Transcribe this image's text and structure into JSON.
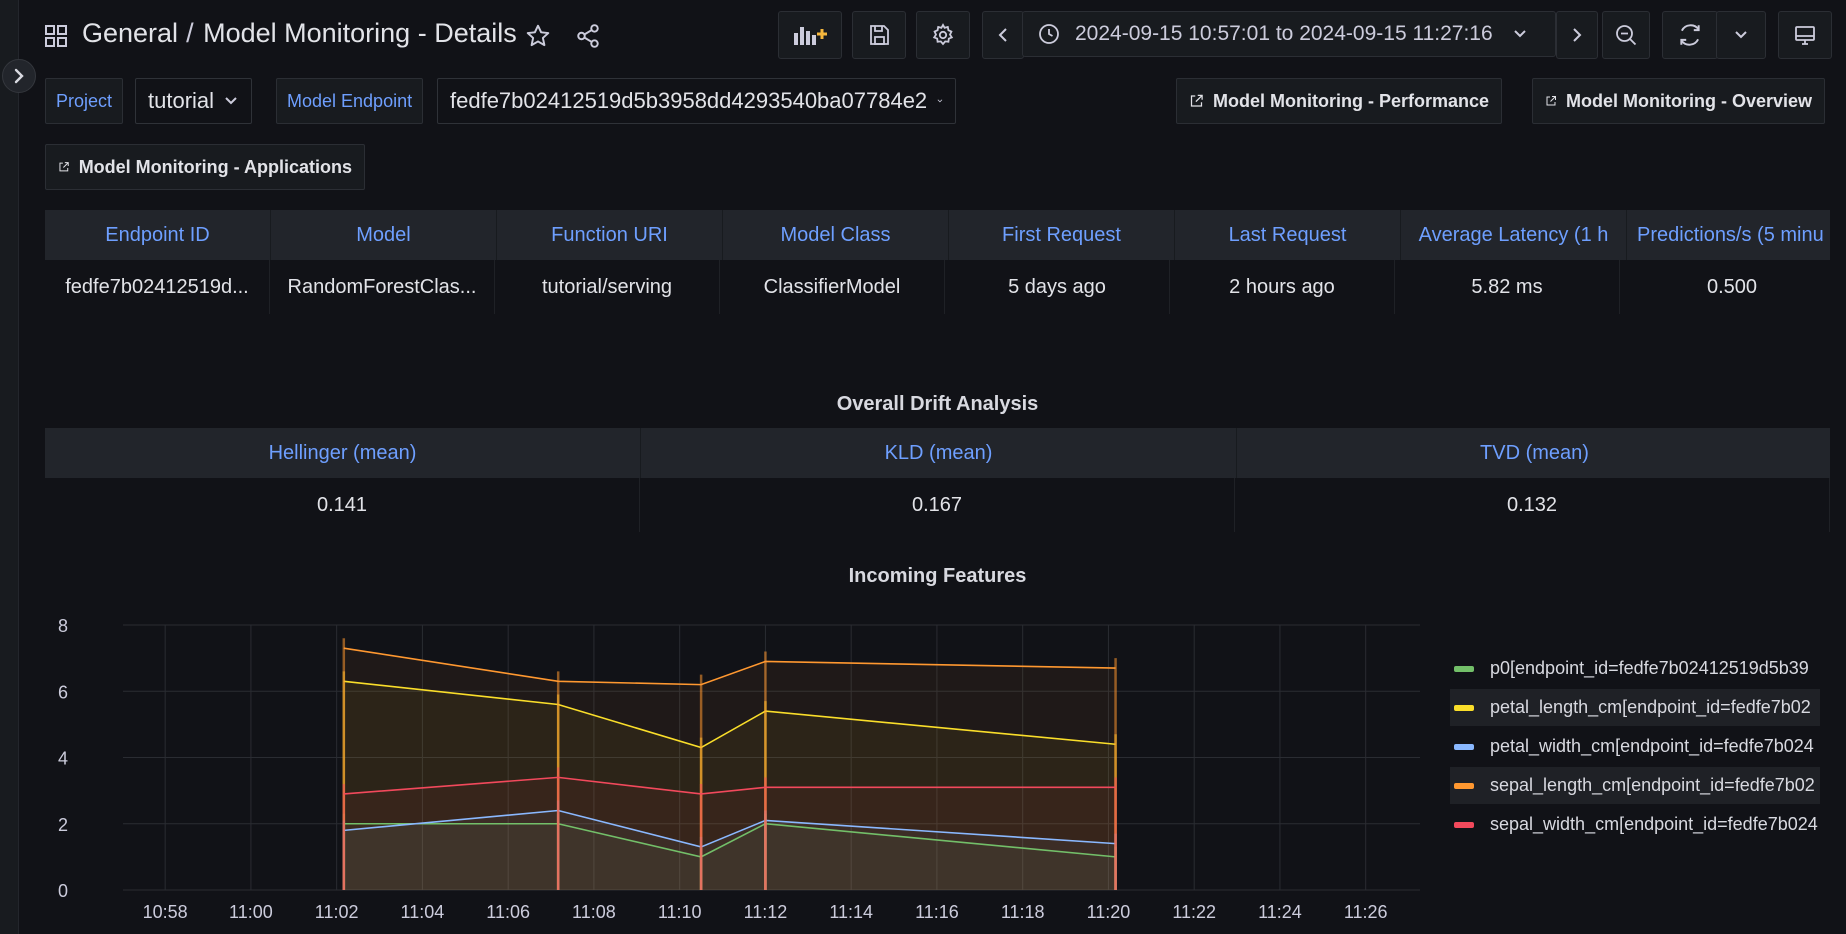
{
  "nav": {
    "folder": "General",
    "separator": "/",
    "dashboard": "Model Monitoring - Details",
    "time_range": {
      "from": "2024-09-15 10:57:01",
      "to_word": "to",
      "to": "2024-09-15 11:27:16"
    }
  },
  "variables": {
    "project": {
      "label": "Project",
      "value": "tutorial"
    },
    "endpoint": {
      "label": "Model Endpoint",
      "value": "fedfe7b02412519d5b3958dd4293540ba07784e2"
    }
  },
  "links": [
    {
      "label": "Model Monitoring - Performance"
    },
    {
      "label": "Model Monitoring - Overview"
    },
    {
      "label": "Model Monitoring - Applications"
    }
  ],
  "endpoint_table": {
    "headers": [
      "Endpoint ID",
      "Model",
      "Function URI",
      "Model Class",
      "First Request",
      "Last Request",
      "Average Latency (1 h",
      "Predictions/s (5 minu"
    ],
    "row": [
      "fedfe7b02412519d...",
      "RandomForestClas...",
      "tutorial/serving",
      "ClassifierModel",
      "5 days ago",
      "2 hours ago",
      "5.82 ms",
      "0.500"
    ]
  },
  "drift_panel": {
    "title": "Overall Drift Analysis",
    "headers": [
      "Hellinger (mean)",
      "KLD (mean)",
      "TVD (mean)"
    ],
    "row": [
      "0.141",
      "0.167",
      "0.132"
    ]
  },
  "chart_title": "Incoming Features",
  "chart_data": {
    "type": "line",
    "title": "Incoming Features",
    "xlabel": "",
    "ylabel": "",
    "ylim": [
      0,
      8
    ],
    "xlim": [
      "10:57:01",
      "11:27:16"
    ],
    "x_ticks": [
      "10:58",
      "11:00",
      "11:02",
      "11:04",
      "11:06",
      "11:08",
      "11:10",
      "11:12",
      "11:14",
      "11:16",
      "11:18",
      "11:20",
      "11:22",
      "11:24",
      "11:26"
    ],
    "y_ticks": [
      "0",
      "2",
      "4",
      "6",
      "8"
    ],
    "grid": true,
    "legend_position": "right",
    "x": [
      "11:02:10",
      "11:07:10",
      "11:10:30",
      "11:12:00",
      "11:20:10"
    ],
    "series": [
      {
        "name": "p0[endpoint_id=fedfe7b02412519d5b39",
        "color": "#73bf69",
        "values": [
          2.0,
          2.0,
          1.0,
          2.0,
          1.0
        ]
      },
      {
        "name": "petal_length_cm[endpoint_id=fedfe7b02",
        "color": "#fade2a",
        "values": [
          6.3,
          5.6,
          4.3,
          5.4,
          4.4
        ]
      },
      {
        "name": "petal_width_cm[endpoint_id=fedfe7b024",
        "color": "#8ab8ff",
        "values": [
          1.8,
          2.4,
          1.3,
          2.1,
          1.4
        ]
      },
      {
        "name": "sepal_length_cm[endpoint_id=fedfe7b02",
        "color": "#ff9830",
        "values": [
          7.3,
          6.3,
          6.2,
          6.9,
          6.7
        ]
      },
      {
        "name": "sepal_width_cm[endpoint_id=fedfe7b024",
        "color": "#f2495c",
        "values": [
          2.9,
          3.4,
          2.9,
          3.1,
          3.1
        ]
      }
    ]
  }
}
